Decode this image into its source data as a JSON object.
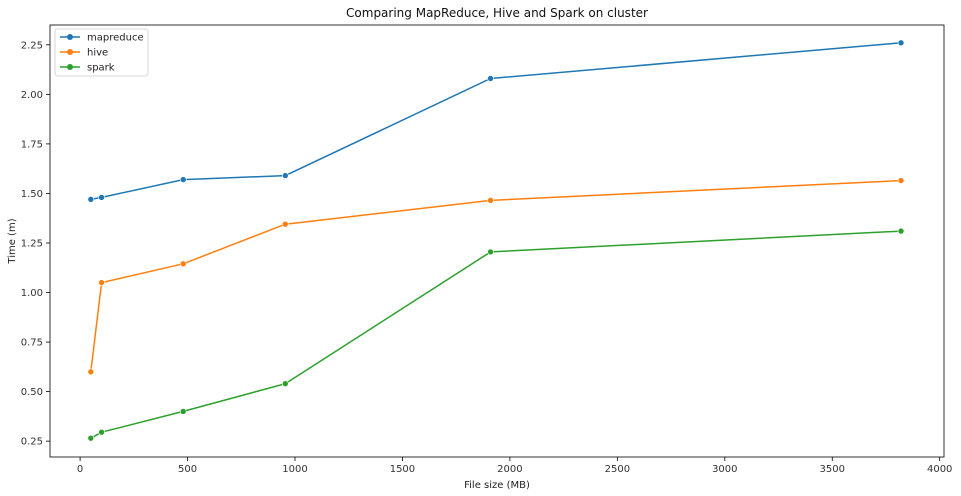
{
  "chart_data": {
    "type": "line",
    "title": "Comparing MapReduce, Hive and Spark on cluster",
    "xlabel": "File size (MB)",
    "ylabel": "Time (m)",
    "xlim": [
      -140,
      4020
    ],
    "ylim": [
      0.17,
      2.35
    ],
    "xticks": [
      0,
      500,
      1000,
      1500,
      2000,
      2500,
      3000,
      3500,
      4000
    ],
    "yticks": [
      0.25,
      0.5,
      0.75,
      1.0,
      1.25,
      1.5,
      1.75,
      2.0,
      2.25
    ],
    "grid": false,
    "legend": "top-left",
    "x": [
      50,
      100,
      480,
      955,
      1910,
      3820
    ],
    "series": [
      {
        "name": "mapreduce",
        "color": "#1f77b4",
        "values": [
          1.47,
          1.48,
          1.57,
          1.59,
          2.08,
          2.26
        ]
      },
      {
        "name": "hive",
        "color": "#ff7f0e",
        "values": [
          0.6,
          1.05,
          1.145,
          1.345,
          1.465,
          1.565
        ]
      },
      {
        "name": "spark",
        "color": "#2ca02c",
        "values": [
          0.265,
          0.295,
          0.4,
          0.54,
          1.205,
          1.31
        ]
      }
    ]
  }
}
